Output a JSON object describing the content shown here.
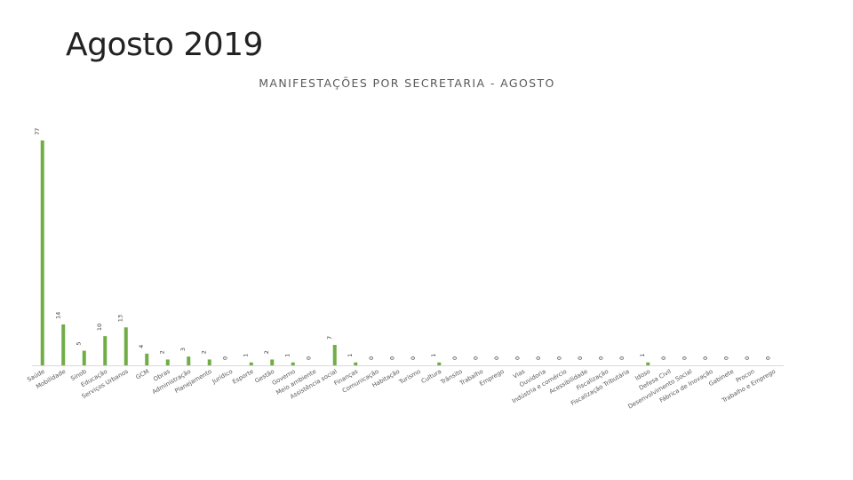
{
  "slide": {
    "title": "Agosto 2019"
  },
  "chart_data": {
    "type": "bar",
    "title": "MANIFESTAÇÕES POR SECRETARIA - AGOSTO",
    "xlabel": "",
    "ylabel": "",
    "ylim": [
      0,
      77
    ],
    "grid": false,
    "bar_color": "#70AD47",
    "categories": [
      "Saúde",
      "Mobilidade",
      "Sinob",
      "Educação",
      "Serviços Urbanos",
      "GCM",
      "Obras",
      "Administração",
      "Planejamento",
      "Jurídico",
      "Esporte",
      "Gestão",
      "Governo",
      "Meio ambiente",
      "Assistência social",
      "Finanças",
      "Comunicação",
      "Habitação",
      "Turismo",
      "Cultura",
      "Trânsito",
      "Trabalho",
      "Emprego",
      "Vias",
      "Ouvidoria",
      "Indústria e comércio",
      "Acessibilidade",
      "Fiscalização",
      "Fiscalização Tributária",
      "Idoso",
      "Defesa Civil",
      "Desenvolvimento Social",
      "Fábrica de Inovação",
      "Gabinete",
      "Procon",
      "Trabalho e Emprego"
    ],
    "values": [
      77,
      14,
      5,
      10,
      13,
      4,
      2,
      3,
      2,
      0,
      1,
      2,
      1,
      0,
      7,
      1,
      0,
      0,
      0,
      1,
      0,
      0,
      0,
      0,
      0,
      0,
      0,
      0,
      0,
      1,
      0,
      0,
      0,
      0,
      0,
      0
    ],
    "value_labels": [
      "77",
      "14",
      "5",
      "10",
      "13",
      "4",
      "2",
      "3",
      "2",
      "0",
      "1",
      "2",
      "1",
      "0",
      "7",
      "1",
      "0",
      "0",
      "0",
      "1",
      "0",
      "0",
      "0",
      "0",
      "0",
      "0",
      "0",
      "0",
      "0",
      "1",
      "0",
      "0",
      "0",
      "0",
      "0",
      "0"
    ]
  }
}
